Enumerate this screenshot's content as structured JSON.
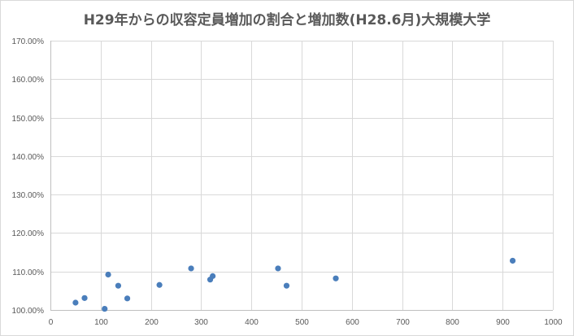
{
  "chart_data": {
    "type": "scatter",
    "title": "H29年からの収容定員増加の割合と増加数(H28.6月)大規模大学",
    "xlabel": "",
    "ylabel": "",
    "xlim": [
      0,
      1000
    ],
    "ylim": [
      1.0,
      1.7
    ],
    "x_ticks": [
      0,
      100,
      200,
      300,
      400,
      500,
      600,
      700,
      800,
      900,
      1000
    ],
    "x_tick_labels": [
      "0",
      "100",
      "200",
      "300",
      "400",
      "500",
      "600",
      "700",
      "800",
      "900",
      "1000"
    ],
    "y_ticks": [
      1.0,
      1.1,
      1.2,
      1.3,
      1.4,
      1.5,
      1.6,
      1.7
    ],
    "y_tick_labels": [
      "100.00%",
      "110.00%",
      "120.00%",
      "130.00%",
      "140.00%",
      "150.00%",
      "160.00%",
      "170.00%"
    ],
    "grid": true,
    "legend": "none",
    "marker_color": "#4a7ebb",
    "points": [
      {
        "x": 50,
        "y": 1.019
      },
      {
        "x": 68,
        "y": 1.031
      },
      {
        "x": 108,
        "y": 1.003
      },
      {
        "x": 115,
        "y": 1.092
      },
      {
        "x": 135,
        "y": 1.063
      },
      {
        "x": 153,
        "y": 1.03
      },
      {
        "x": 217,
        "y": 1.065
      },
      {
        "x": 280,
        "y": 1.108
      },
      {
        "x": 318,
        "y": 1.079
      },
      {
        "x": 323,
        "y": 1.088
      },
      {
        "x": 453,
        "y": 1.108
      },
      {
        "x": 470,
        "y": 1.063
      },
      {
        "x": 568,
        "y": 1.082
      },
      {
        "x": 920,
        "y": 1.128
      }
    ]
  }
}
